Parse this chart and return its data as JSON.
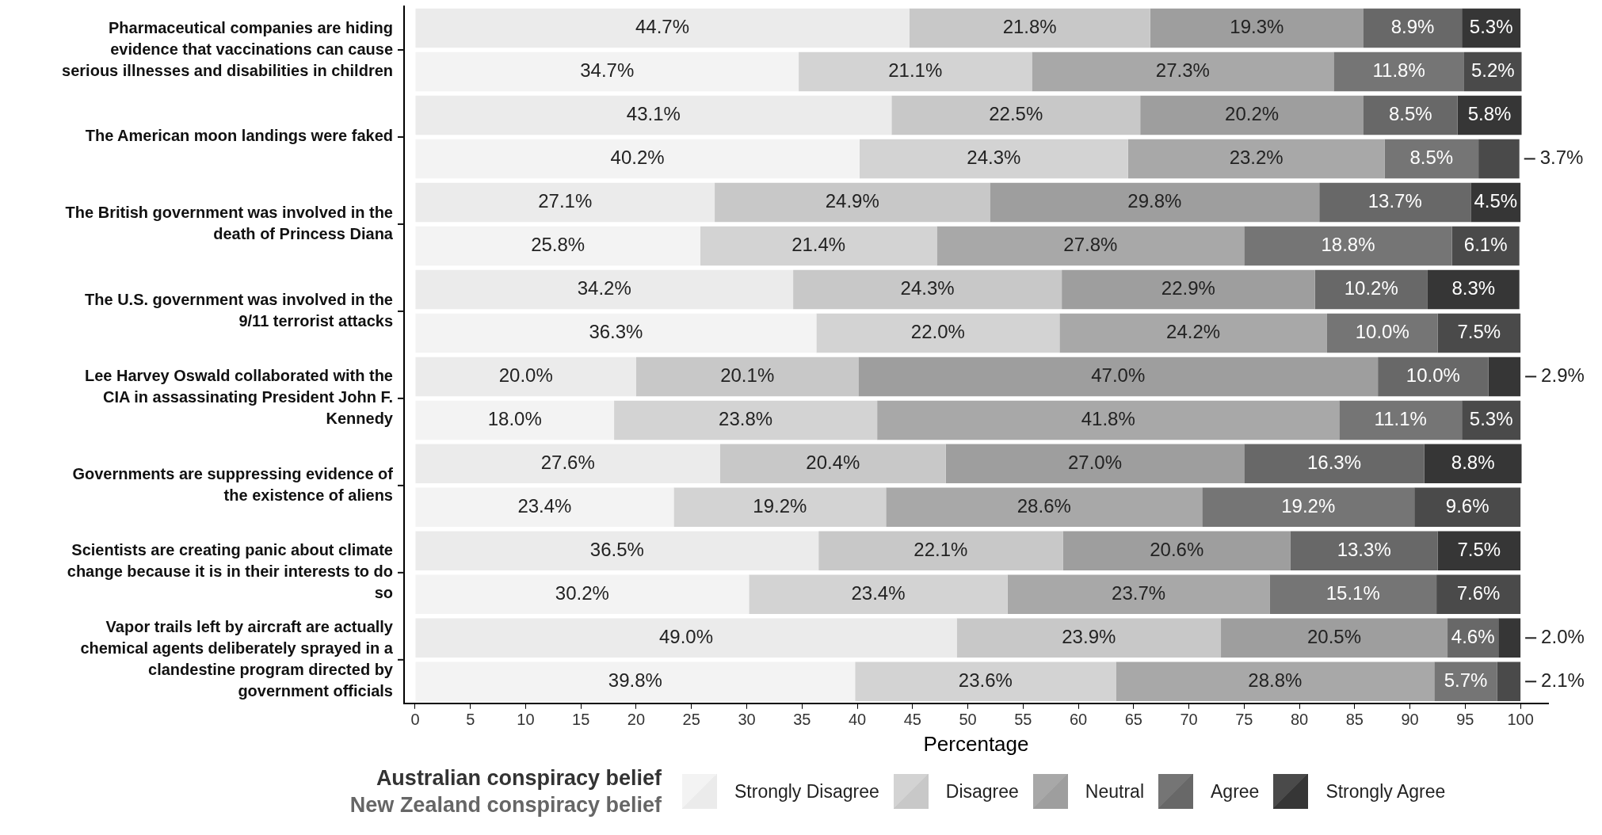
{
  "chart_data": {
    "type": "bar",
    "orientation": "horizontal",
    "stacked": true,
    "xlabel": "Percentage",
    "legend": "bottom",
    "grid": false,
    "categories": [
      "Pharmaceutical companies are hiding evidence that vaccinations can cause serious illnesses and disabilities in children",
      null,
      "The American moon landings were faked",
      null,
      "The British government was involved in the death of Princess Diana",
      null,
      "The U.S. government was involved in the 9/11 terrorist attacks",
      null,
      "Lee Harvey Oswald collaborated with the CIA in assassinating President John F. Kennedy",
      null,
      "Governments are suppressing evidence of the existence of aliens",
      null,
      "Scientists are creating panic about climate change because it is in their interests to do so",
      null,
      "Vapor trails left by aircraft are actually chemical agents deliberately sprayed in a clandestine program directed by government officials",
      null
    ],
    "annotations": [
      "Australian conspiracy belief",
      "New Zealand conspiracy belief"
    ],
    "xlim": [
      -1,
      102.5
    ],
    "xticks": [
      0,
      5,
      10,
      15,
      20,
      25,
      30,
      35,
      40,
      45,
      50,
      55,
      60,
      65,
      70,
      75,
      80,
      85,
      90,
      95,
      100
    ],
    "series": [
      {
        "name": "Strongly Disagree",
        "colors": [
          "#ebebeb",
          "#f3f3f3",
          "#ebebeb",
          "#f3f3f3",
          "#ebebeb",
          "#f3f3f3",
          "#ebebeb",
          "#f3f3f3",
          "#ebebeb",
          "#f3f3f3",
          "#ebebeb",
          "#f3f3f3",
          "#ebebeb",
          "#f3f3f3",
          "#ebebeb",
          "#f3f3f3"
        ],
        "values": [
          44.7,
          34.7,
          43.1,
          40.2,
          27.1,
          25.8,
          34.2,
          36.3,
          20.0,
          18.0,
          27.6,
          23.4,
          36.5,
          30.2,
          49.0,
          39.8
        ],
        "value_labels": [
          "44.7%",
          "34.7%",
          "43.1%",
          "40.2%",
          "27.1%",
          "25.8%",
          "34.2%",
          "36.3%",
          "20.0%",
          "18.0%",
          "27.6%",
          "23.4%",
          "36.5%",
          "30.2%",
          "49.0%",
          "39.8%"
        ]
      },
      {
        "name": "Disagree",
        "colors": [
          "#c8c8c8",
          "#d3d3d3",
          "#c8c8c8",
          "#d3d3d3",
          "#c8c8c8",
          "#d3d3d3",
          "#c8c8c8",
          "#d3d3d3",
          "#c8c8c8",
          "#d3d3d3",
          "#c8c8c8",
          "#d3d3d3",
          "#c8c8c8",
          "#d3d3d3",
          "#c8c8c8",
          "#d3d3d3"
        ],
        "values": [
          21.8,
          21.1,
          22.5,
          24.3,
          24.9,
          21.4,
          24.3,
          22.0,
          20.1,
          23.8,
          20.4,
          19.2,
          22.1,
          23.4,
          23.9,
          23.6
        ],
        "value_labels": [
          "21.8%",
          "21.1%",
          "22.5%",
          "24.3%",
          "24.9%",
          "21.4%",
          "24.3%",
          "22.0%",
          "20.1%",
          "23.8%",
          "20.4%",
          "19.2%",
          "22.1%",
          "23.4%",
          "23.9%",
          "23.6%"
        ]
      },
      {
        "name": "Neutral",
        "colors": [
          "#9e9e9e",
          "#a8a8a8",
          "#9e9e9e",
          "#a8a8a8",
          "#9e9e9e",
          "#a8a8a8",
          "#9e9e9e",
          "#a8a8a8",
          "#9e9e9e",
          "#a8a8a8",
          "#9e9e9e",
          "#a8a8a8",
          "#9e9e9e",
          "#a8a8a8",
          "#9e9e9e",
          "#a8a8a8"
        ],
        "values": [
          19.3,
          27.3,
          20.2,
          23.2,
          29.8,
          27.8,
          22.9,
          24.2,
          47.0,
          41.8,
          27.0,
          28.6,
          20.6,
          23.7,
          20.5,
          28.8
        ],
        "value_labels": [
          "19.3%",
          "27.3%",
          "20.2%",
          "23.2%",
          "29.8%",
          "27.8%",
          "22.9%",
          "24.2%",
          "47.0%",
          "41.8%",
          "27.0%",
          "28.6%",
          "20.6%",
          "23.7%",
          "20.5%",
          "28.8%"
        ]
      },
      {
        "name": "Agree",
        "colors": [
          "#686868",
          "#757575",
          "#686868",
          "#757575",
          "#686868",
          "#757575",
          "#686868",
          "#757575",
          "#686868",
          "#757575",
          "#686868",
          "#757575",
          "#686868",
          "#757575",
          "#686868",
          "#757575"
        ],
        "values": [
          8.9,
          11.8,
          8.5,
          8.5,
          13.7,
          18.8,
          10.2,
          10.0,
          10.0,
          11.1,
          16.3,
          19.2,
          13.3,
          15.1,
          4.6,
          5.7
        ],
        "value_labels": [
          "8.9%",
          "11.8%",
          "8.5%",
          "8.5%",
          "13.7%",
          "18.8%",
          "10.2%",
          "10.0%",
          "10.0%",
          "11.1%",
          "16.3%",
          "19.2%",
          "13.3%",
          "15.1%",
          "4.6%",
          "5.7%"
        ]
      },
      {
        "name": "Strongly Agree",
        "colors": [
          "#363636",
          "#4a4a4a",
          "#363636",
          "#4a4a4a",
          "#363636",
          "#4a4a4a",
          "#363636",
          "#4a4a4a",
          "#363636",
          "#4a4a4a",
          "#363636",
          "#4a4a4a",
          "#363636",
          "#4a4a4a",
          "#363636",
          "#4a4a4a"
        ],
        "values": [
          5.3,
          5.2,
          5.8,
          3.7,
          4.5,
          6.1,
          8.3,
          7.5,
          2.9,
          5.3,
          8.8,
          9.6,
          7.5,
          7.6,
          2.0,
          2.1
        ],
        "value_labels": [
          "5.3%",
          "5.2%",
          "5.8%",
          "3.7%",
          "4.5%",
          "6.1%",
          "8.3%",
          "7.5%",
          "2.9%",
          "5.3%",
          "8.8%",
          "9.6%",
          "7.5%",
          "7.6%",
          "2.0%",
          "2.1%"
        ]
      }
    ]
  }
}
